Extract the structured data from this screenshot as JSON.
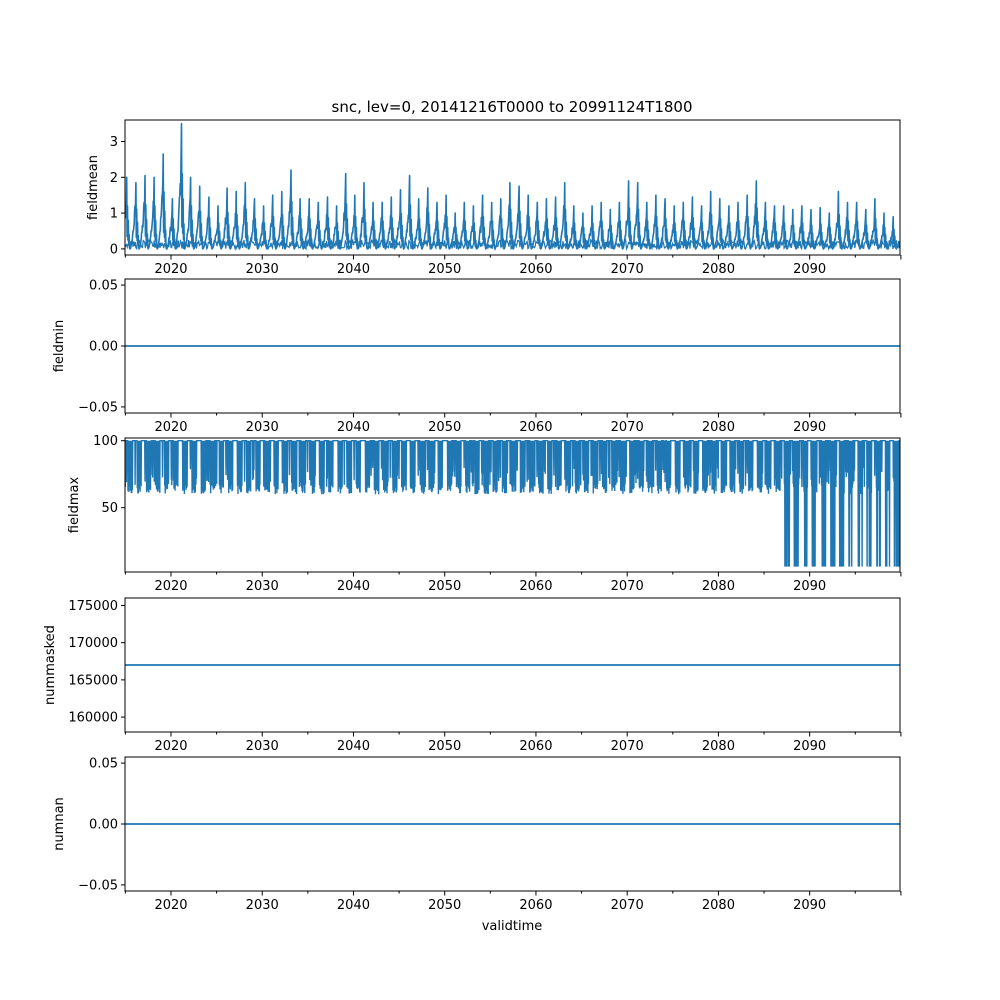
{
  "title": "snc, lev=0, 20141216T0000 to 20991124T1800",
  "xlabel": "validtime",
  "x_ticks": [
    "2020",
    "2030",
    "2040",
    "2050",
    "2060",
    "2070",
    "2080",
    "2090"
  ],
  "colors": {
    "line": "#1f77b4",
    "axes": "#000000",
    "background": "#ffffff"
  },
  "chart_data": [
    {
      "type": "line",
      "ylabel": "fieldmean",
      "x_range": [
        "2014-12-16",
        "2099-11-24"
      ],
      "xlim": [
        2014.96,
        2099.9
      ],
      "ylim": [
        -0.17,
        3.6
      ],
      "y_ticks": [
        0,
        1,
        2,
        3
      ],
      "y_tick_labels": [
        "0",
        "1",
        "2",
        "3"
      ],
      "grid": false,
      "series": [
        {
          "pattern": "seasonal",
          "baseline": 0.0,
          "annual_peaks": [
            {
              "year": 2015,
              "value": 2.0
            },
            {
              "year": 2016,
              "value": 1.85
            },
            {
              "year": 2017,
              "value": 2.05
            },
            {
              "year": 2018,
              "value": 2.0
            },
            {
              "year": 2019,
              "value": 2.65
            },
            {
              "year": 2020,
              "value": 1.4
            },
            {
              "year": 2021,
              "value": 3.5
            },
            {
              "year": 2022,
              "value": 2.0
            },
            {
              "year": 2023,
              "value": 1.75
            },
            {
              "year": 2024,
              "value": 1.45
            },
            {
              "year": 2025,
              "value": 1.2
            },
            {
              "year": 2026,
              "value": 1.7
            },
            {
              "year": 2027,
              "value": 1.6
            },
            {
              "year": 2028,
              "value": 1.85
            },
            {
              "year": 2029,
              "value": 1.4
            },
            {
              "year": 2030,
              "value": 1.2
            },
            {
              "year": 2031,
              "value": 1.5
            },
            {
              "year": 2032,
              "value": 1.6
            },
            {
              "year": 2033,
              "value": 2.2
            },
            {
              "year": 2034,
              "value": 1.4
            },
            {
              "year": 2035,
              "value": 1.4
            },
            {
              "year": 2036,
              "value": 1.3
            },
            {
              "year": 2037,
              "value": 1.45
            },
            {
              "year": 2038,
              "value": 1.2
            },
            {
              "year": 2039,
              "value": 2.1
            },
            {
              "year": 2040,
              "value": 1.5
            },
            {
              "year": 2041,
              "value": 1.85
            },
            {
              "year": 2042,
              "value": 1.3
            },
            {
              "year": 2043,
              "value": 1.3
            },
            {
              "year": 2044,
              "value": 1.45
            },
            {
              "year": 2045,
              "value": 1.65
            },
            {
              "year": 2046,
              "value": 2.05
            },
            {
              "year": 2047,
              "value": 1.4
            },
            {
              "year": 2048,
              "value": 1.7
            },
            {
              "year": 2049,
              "value": 1.3
            },
            {
              "year": 2050,
              "value": 1.5
            },
            {
              "year": 2051,
              "value": 1.0
            },
            {
              "year": 2052,
              "value": 1.3
            },
            {
              "year": 2053,
              "value": 1.2
            },
            {
              "year": 2054,
              "value": 1.5
            },
            {
              "year": 2055,
              "value": 1.3
            },
            {
              "year": 2056,
              "value": 1.4
            },
            {
              "year": 2057,
              "value": 1.85
            },
            {
              "year": 2058,
              "value": 1.75
            },
            {
              "year": 2059,
              "value": 1.5
            },
            {
              "year": 2060,
              "value": 1.3
            },
            {
              "year": 2061,
              "value": 1.4
            },
            {
              "year": 2062,
              "value": 1.45
            },
            {
              "year": 2063,
              "value": 1.85
            },
            {
              "year": 2064,
              "value": 1.2
            },
            {
              "year": 2065,
              "value": 1.0
            },
            {
              "year": 2066,
              "value": 1.2
            },
            {
              "year": 2067,
              "value": 1.3
            },
            {
              "year": 2068,
              "value": 1.1
            },
            {
              "year": 2069,
              "value": 1.3
            },
            {
              "year": 2070,
              "value": 1.9
            },
            {
              "year": 2071,
              "value": 1.85
            },
            {
              "year": 2072,
              "value": 1.3
            },
            {
              "year": 2073,
              "value": 1.5
            },
            {
              "year": 2074,
              "value": 1.4
            },
            {
              "year": 2075,
              "value": 1.2
            },
            {
              "year": 2076,
              "value": 1.3
            },
            {
              "year": 2077,
              "value": 1.45
            },
            {
              "year": 2078,
              "value": 1.2
            },
            {
              "year": 2079,
              "value": 1.6
            },
            {
              "year": 2080,
              "value": 1.4
            },
            {
              "year": 2081,
              "value": 1.2
            },
            {
              "year": 2082,
              "value": 1.3
            },
            {
              "year": 2083,
              "value": 1.5
            },
            {
              "year": 2084,
              "value": 1.9
            },
            {
              "year": 2085,
              "value": 1.3
            },
            {
              "year": 2086,
              "value": 1.2
            },
            {
              "year": 2087,
              "value": 1.2
            },
            {
              "year": 2088,
              "value": 1.1
            },
            {
              "year": 2089,
              "value": 1.2
            },
            {
              "year": 2090,
              "value": 1.1
            },
            {
              "year": 2091,
              "value": 1.15
            },
            {
              "year": 2092,
              "value": 1.0
            },
            {
              "year": 2093,
              "value": 1.6
            },
            {
              "year": 2094,
              "value": 1.3
            },
            {
              "year": 2095,
              "value": 1.3
            },
            {
              "year": 2096,
              "value": 1.1
            },
            {
              "year": 2097,
              "value": 1.4
            },
            {
              "year": 2098,
              "value": 1.0
            },
            {
              "year": 2099,
              "value": 0.9
            }
          ]
        }
      ]
    },
    {
      "type": "line",
      "ylabel": "fieldmin",
      "xlim": [
        2014.96,
        2099.9
      ],
      "ylim": [
        -0.055,
        0.055
      ],
      "y_ticks": [
        -0.05,
        0.0,
        0.05
      ],
      "y_tick_labels": [
        "−0.05",
        "0.00",
        "0.05"
      ],
      "grid": false,
      "series": [
        {
          "pattern": "constant",
          "value": 0.0
        }
      ]
    },
    {
      "type": "line",
      "ylabel": "fieldmax",
      "xlim": [
        2014.96,
        2099.9
      ],
      "ylim": [
        2,
        102
      ],
      "y_ticks": [
        50,
        100
      ],
      "y_tick_labels": [
        "50",
        "100"
      ],
      "grid": false,
      "series": [
        {
          "pattern": "oscillating",
          "high": 100,
          "typical_low": 64,
          "late_low_from_year": 2087,
          "late_low": 6
        }
      ]
    },
    {
      "type": "line",
      "ylabel": "nummasked",
      "xlim": [
        2014.96,
        2099.9
      ],
      "ylim": [
        158000,
        176000
      ],
      "y_ticks": [
        160000,
        165000,
        170000,
        175000
      ],
      "y_tick_labels": [
        "160000",
        "165000",
        "170000",
        "175000"
      ],
      "grid": false,
      "series": [
        {
          "pattern": "constant",
          "value": 167000
        }
      ]
    },
    {
      "type": "line",
      "ylabel": "numnan",
      "xlim": [
        2014.96,
        2099.9
      ],
      "ylim": [
        -0.055,
        0.055
      ],
      "y_ticks": [
        -0.05,
        0.0,
        0.05
      ],
      "y_tick_labels": [
        "−0.05",
        "0.00",
        "0.05"
      ],
      "grid": false,
      "series": [
        {
          "pattern": "constant",
          "value": 0.0
        }
      ]
    }
  ]
}
